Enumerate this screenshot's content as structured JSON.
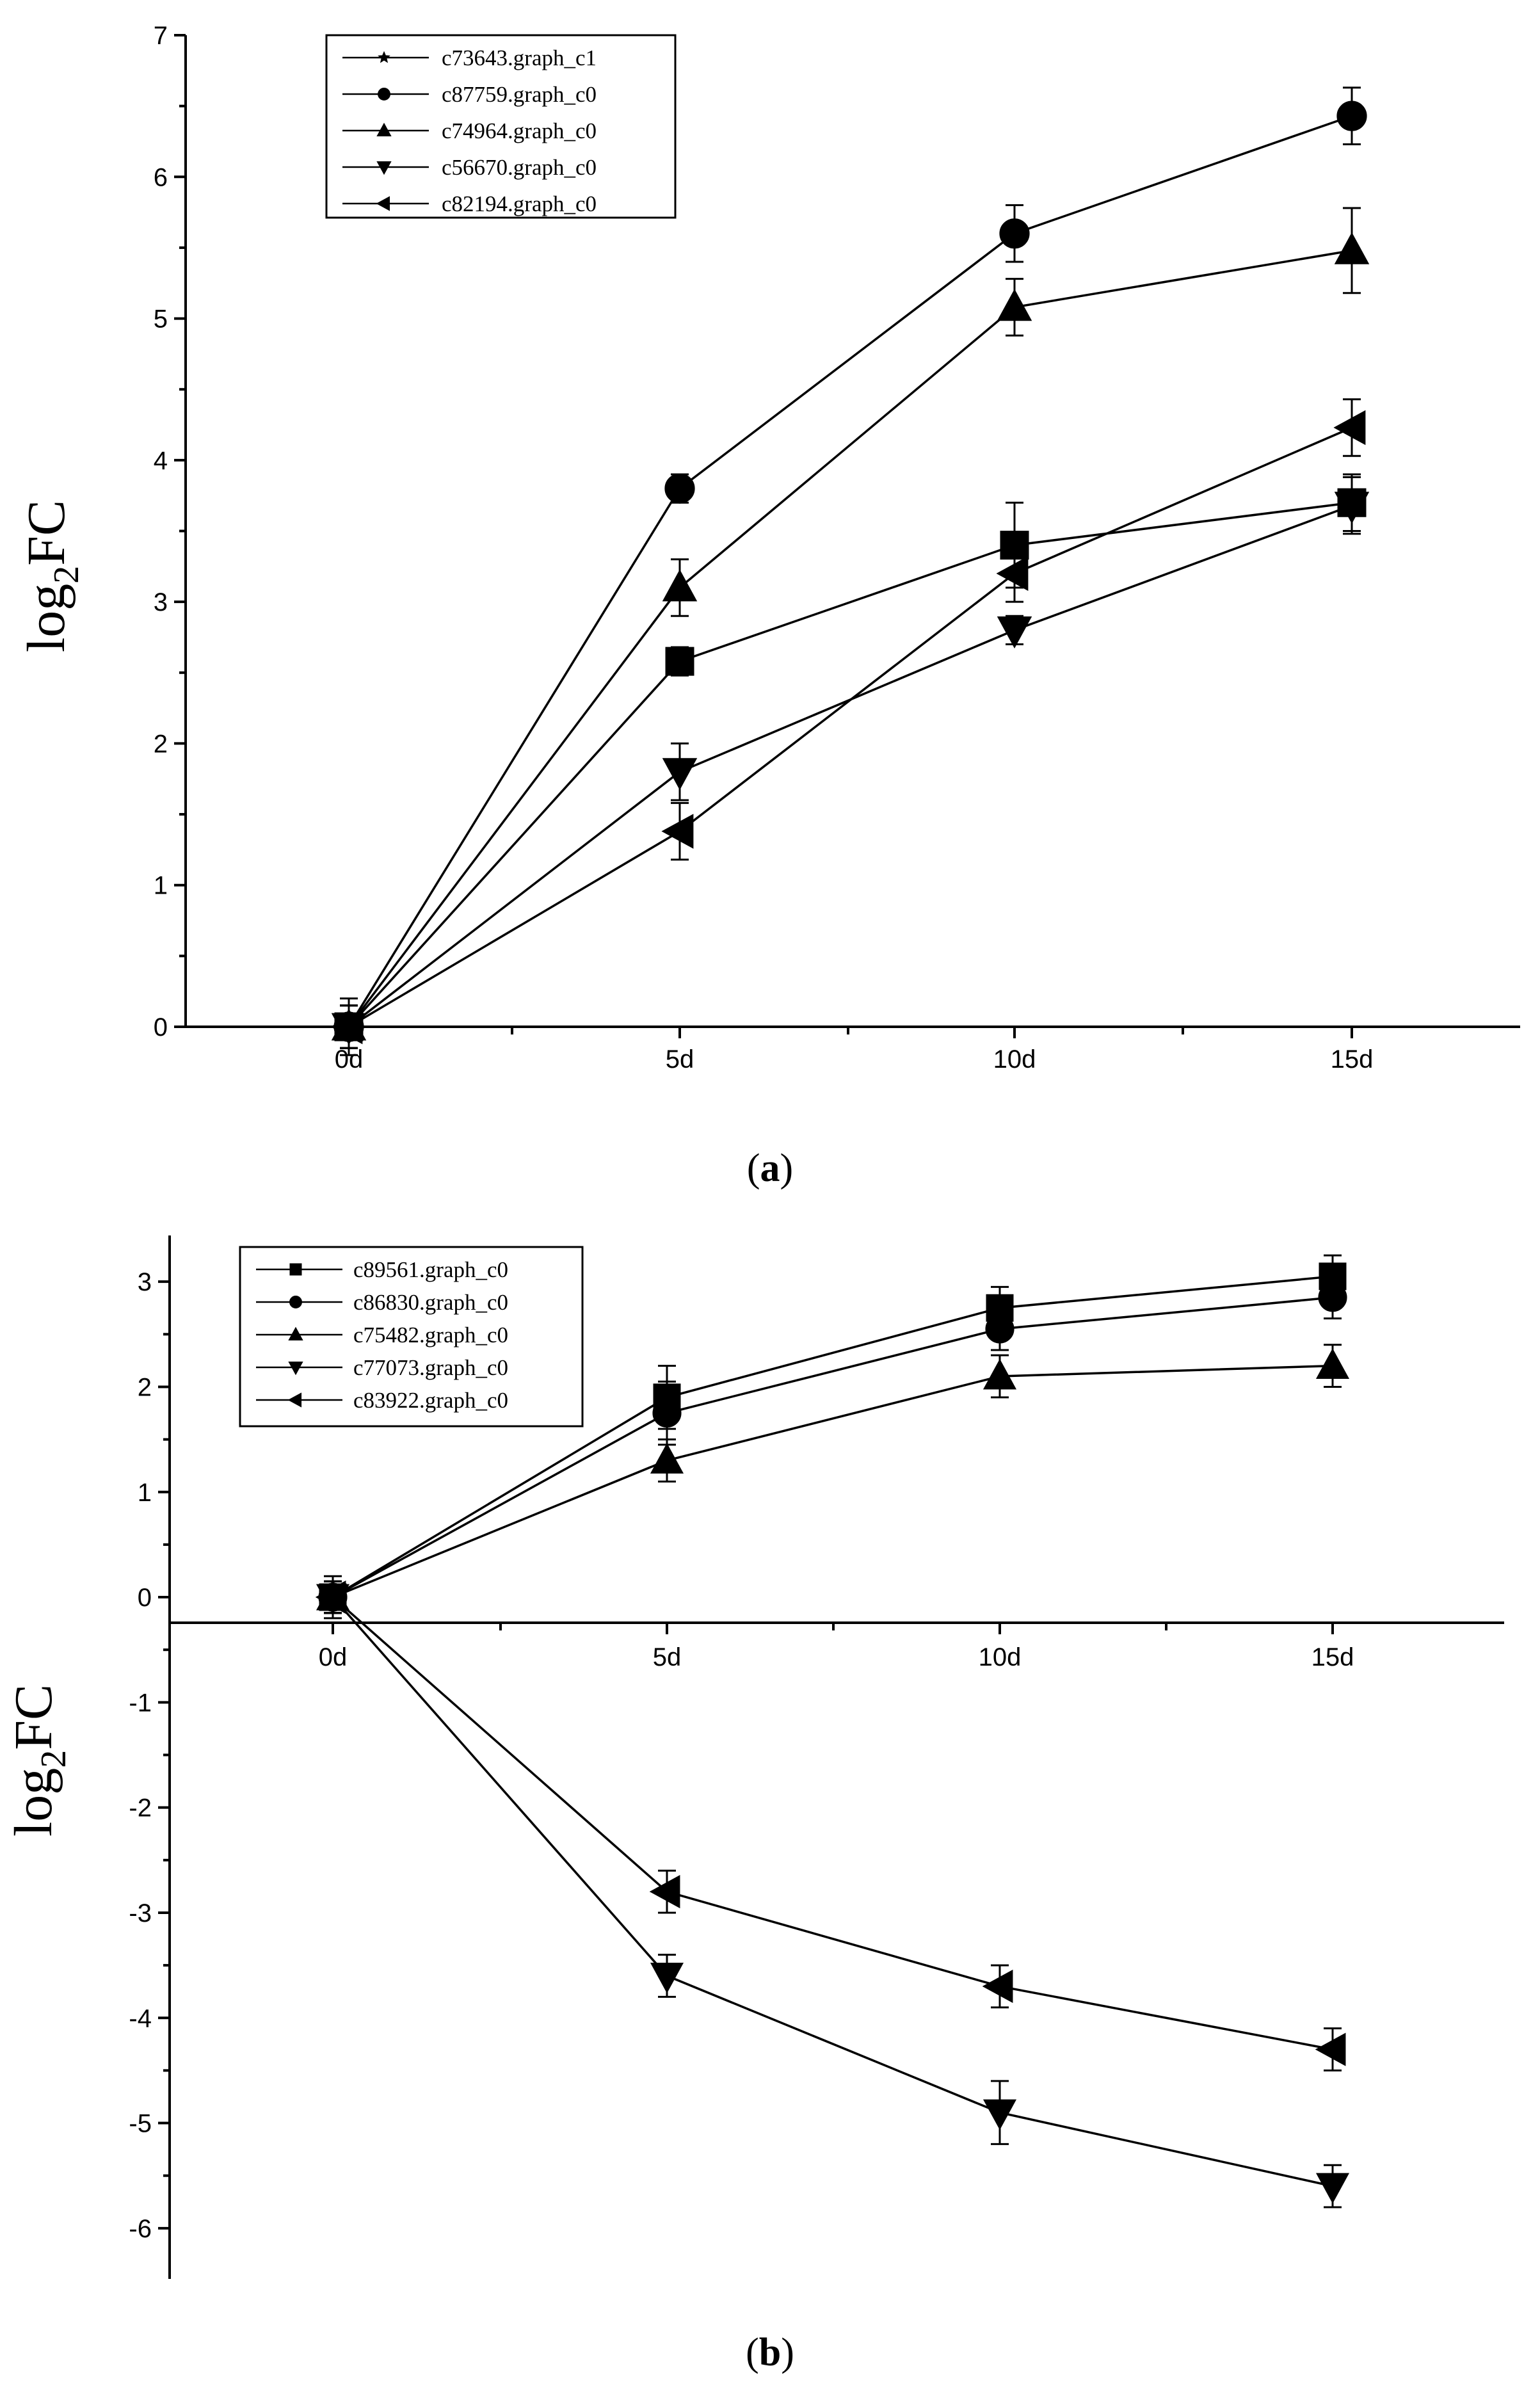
{
  "chart_data": [
    {
      "panel": "a",
      "type": "line",
      "caption": "(a)",
      "ylabel_main": "log",
      "ylabel_sub": "2",
      "ylabel_tail": "FC",
      "ylim": [
        0,
        7
      ],
      "yticks": [
        "0",
        "1",
        "2",
        "3",
        "4",
        "5",
        "6",
        "7"
      ],
      "categories": [
        "0d",
        "5d",
        "10d",
        "15d"
      ],
      "series": [
        {
          "name": "c73643.graph_c1",
          "legend_marker": "star",
          "marker": "square",
          "values": [
            0,
            2.58,
            3.4,
            3.7
          ],
          "errors": [
            0.2,
            0.1,
            0.3,
            0.2
          ]
        },
        {
          "name": "c87759.graph_c0",
          "legend_marker": "circle",
          "marker": "circle",
          "values": [
            0,
            3.8,
            5.6,
            6.43
          ],
          "errors": [
            0.15,
            0.1,
            0.2,
            0.2
          ]
        },
        {
          "name": "c74964.graph_c0",
          "legend_marker": "triangle-up",
          "marker": "triangle-up",
          "values": [
            0,
            3.1,
            5.08,
            5.48
          ],
          "errors": [
            0.15,
            0.2,
            0.2,
            0.3
          ]
        },
        {
          "name": "c56670.graph_c0",
          "legend_marker": "triangle-down",
          "marker": "triangle-down",
          "values": [
            0,
            1.8,
            2.8,
            3.68
          ],
          "errors": [
            0.15,
            0.2,
            0.1,
            0.2
          ]
        },
        {
          "name": "c82194.graph_c0",
          "legend_marker": "triangle-left",
          "marker": "triangle-left",
          "values": [
            0,
            1.38,
            3.2,
            4.23
          ],
          "errors": [
            0.15,
            0.2,
            0.2,
            0.2
          ]
        }
      ]
    },
    {
      "panel": "b",
      "type": "line",
      "caption": "(b)",
      "ylabel_main": "log",
      "ylabel_sub": "2",
      "ylabel_tail": "FC",
      "ylim": [
        -6.5,
        3.5
      ],
      "yticks": [
        "-6",
        "-5",
        "-4",
        "-3",
        "-2",
        "-1",
        "0",
        "1",
        "2",
        "3"
      ],
      "categories": [
        "0d",
        "5d",
        "10d",
        "15d"
      ],
      "series": [
        {
          "name": "c89561.graph_c0",
          "legend_marker": "square",
          "marker": "square",
          "values": [
            0,
            1.9,
            2.75,
            3.05
          ],
          "errors": [
            0.2,
            0.3,
            0.2,
            0.2
          ]
        },
        {
          "name": "c86830.graph_c0",
          "legend_marker": "circle",
          "marker": "circle",
          "values": [
            0,
            1.75,
            2.55,
            2.85
          ],
          "errors": [
            0.15,
            0.3,
            0.2,
            0.2
          ]
        },
        {
          "name": "c75482.graph_c0",
          "legend_marker": "triangle-up",
          "marker": "triangle-up",
          "values": [
            0,
            1.3,
            2.1,
            2.2
          ],
          "errors": [
            0.15,
            0.2,
            0.2,
            0.2
          ]
        },
        {
          "name": "c77073.graph_c0",
          "legend_marker": "triangle-down",
          "marker": "triangle-down",
          "values": [
            0,
            -3.6,
            -4.9,
            -5.6
          ],
          "errors": [
            0.15,
            0.2,
            0.3,
            0.2
          ]
        },
        {
          "name": "c83922.graph_c0",
          "legend_marker": "triangle-left",
          "marker": "triangle-left",
          "values": [
            0,
            -2.8,
            -3.7,
            -4.3
          ],
          "errors": [
            0.15,
            0.2,
            0.2,
            0.2
          ]
        }
      ]
    }
  ]
}
